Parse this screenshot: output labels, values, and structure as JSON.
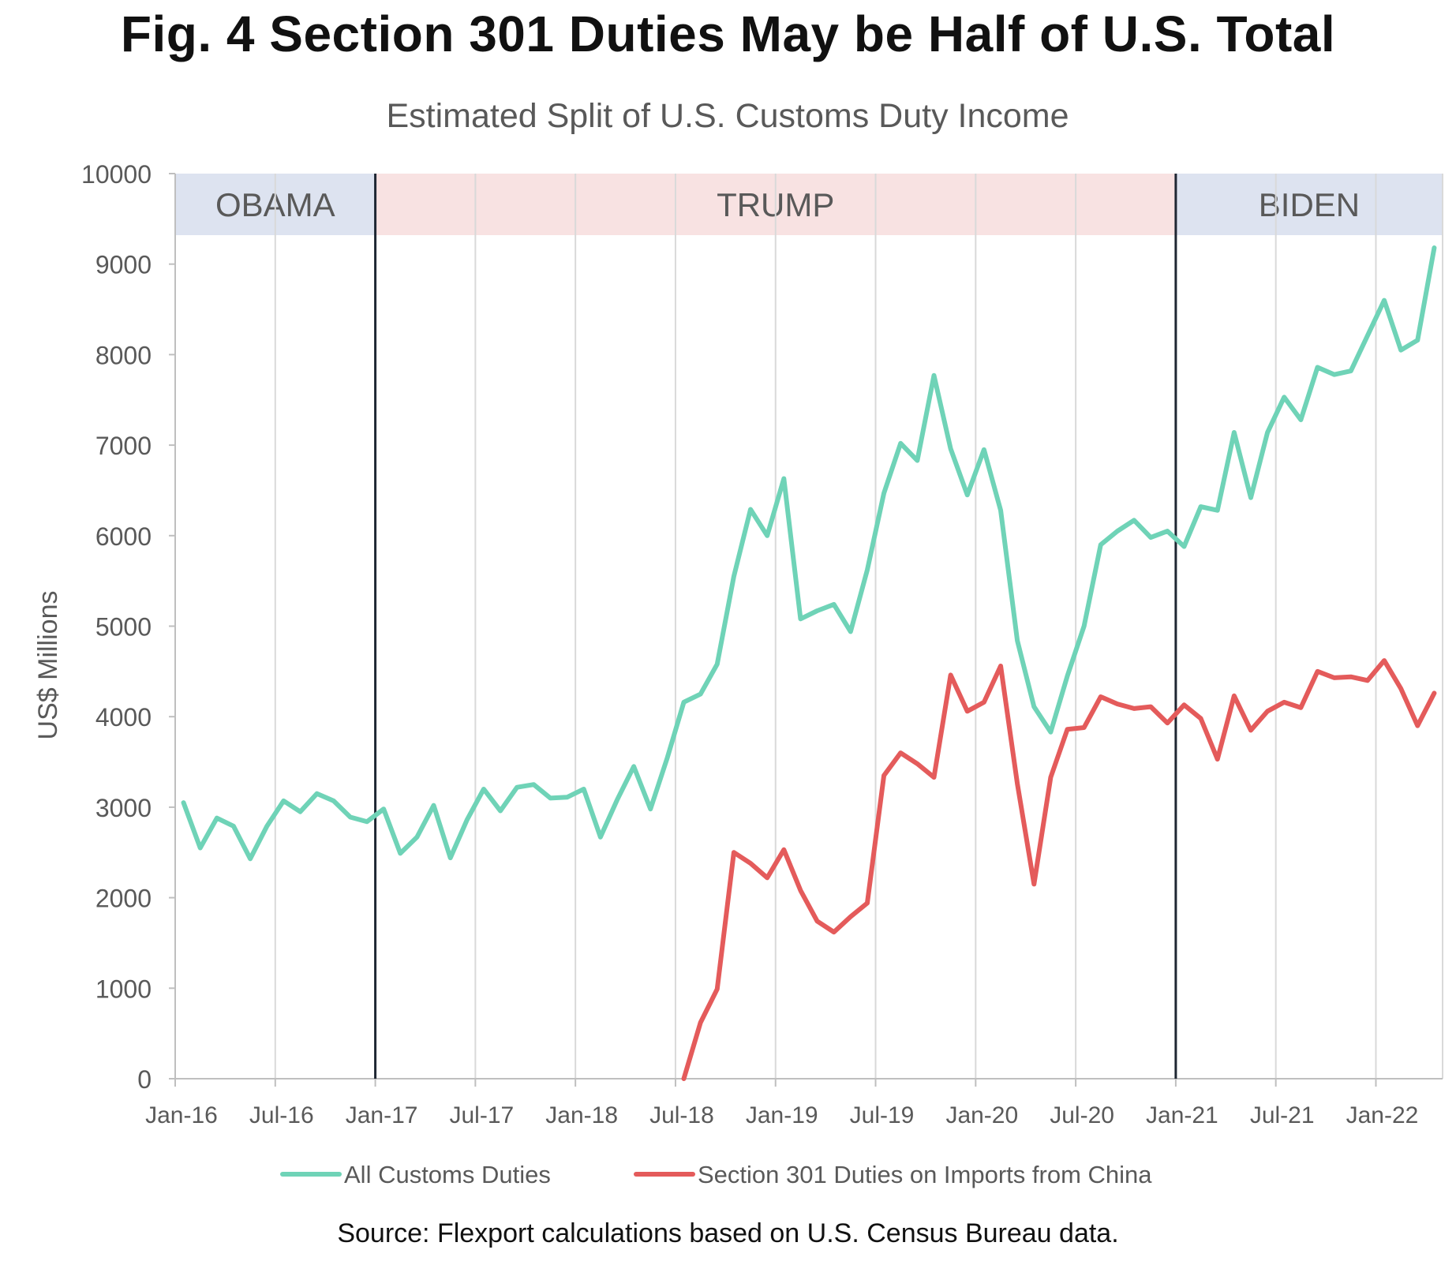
{
  "chart_data": {
    "type": "line",
    "figure_title": "Fig. 4 Section 301 Duties May be Half of U.S. Total",
    "title": "Estimated Split of U.S. Customs Duty Income",
    "ylabel": "US$ Millions",
    "xlabel": "",
    "ylim": [
      0,
      10000
    ],
    "y_ticks": [
      0,
      1000,
      2000,
      3000,
      4000,
      5000,
      6000,
      7000,
      8000,
      9000,
      10000
    ],
    "x_tick_labels": [
      "Jan-16",
      "Jul-16",
      "Jan-17",
      "Jul-17",
      "Jan-18",
      "Jul-18",
      "Jan-19",
      "Jul-19",
      "Jan-20",
      "Jul-20",
      "Jan-21",
      "Jul-21",
      "Jan-22"
    ],
    "x_tick_months": [
      0,
      6,
      12,
      18,
      24,
      30,
      36,
      42,
      48,
      54,
      60,
      66,
      72
    ],
    "x_range_months": [
      0,
      76
    ],
    "grid": true,
    "legend_position": "bottom",
    "eras": [
      {
        "label": "OBAMA",
        "start_month": 0,
        "end_month": 12,
        "color": "#dde3f0"
      },
      {
        "label": "TRUMP",
        "start_month": 12,
        "end_month": 60,
        "color": "#f8e2e2"
      },
      {
        "label": "BIDEN",
        "start_month": 60,
        "end_month": 76,
        "color": "#dde3f0"
      }
    ],
    "era_divider_months": [
      12,
      60
    ],
    "series": [
      {
        "name": "All Customs Duties",
        "color": "#6fd3b7",
        "start_month": 0.5,
        "values": [
          3050,
          2550,
          2880,
          2790,
          2430,
          2790,
          3070,
          2950,
          3150,
          3070,
          2890,
          2840,
          2980,
          2490,
          2670,
          3020,
          2440,
          2860,
          3200,
          2960,
          3220,
          3250,
          3100,
          3110,
          3200,
          2670,
          3080,
          3450,
          2980,
          3540,
          4160,
          4250,
          4580,
          5550,
          6290,
          6000,
          6630,
          5080,
          5170,
          5240,
          4940,
          5620,
          6470,
          7020,
          6830,
          7770,
          6960,
          6450,
          6950,
          6280,
          4840,
          4110,
          3830,
          4450,
          5000,
          5900,
          6050,
          6170,
          5980,
          6050,
          5880,
          6320,
          6280,
          7140,
          6420,
          7140,
          7530,
          7280,
          7860,
          7780,
          7820,
          8210,
          8600,
          8050,
          8160,
          9180
        ]
      },
      {
        "name": "Section 301 Duties on Imports from China",
        "color": "#e45b5b",
        "start_month": 30.5,
        "values": [
          0,
          620,
          990,
          2500,
          2380,
          2220,
          2530,
          2080,
          1740,
          1620,
          1790,
          1940,
          3350,
          3600,
          3480,
          3330,
          4460,
          4060,
          4160,
          4560,
          3260,
          2150,
          3330,
          3860,
          3880,
          4220,
          4140,
          4090,
          4110,
          3930,
          4130,
          3980,
          3530,
          4230,
          3850,
          4060,
          4160,
          4100,
          4500,
          4430,
          4440,
          4400,
          4620,
          4310,
          3900,
          4260
        ]
      }
    ],
    "source": "Source: Flexport calculations based on U.S. Census Bureau data."
  }
}
